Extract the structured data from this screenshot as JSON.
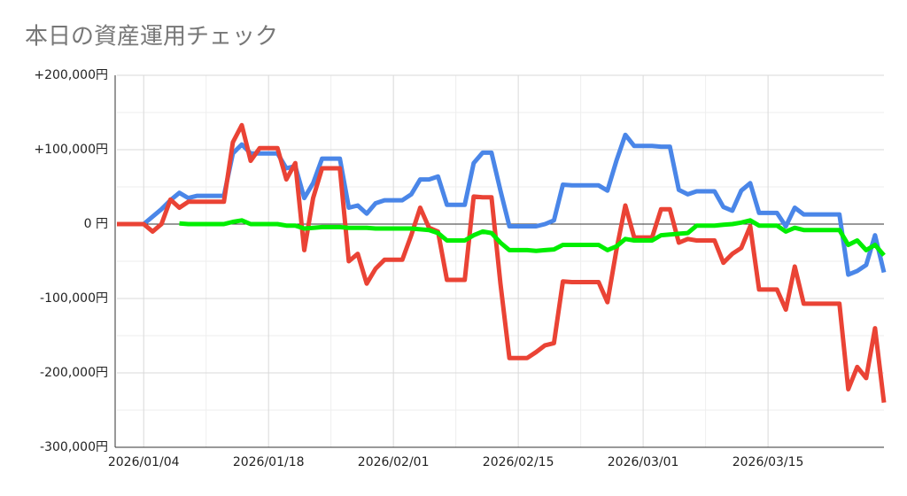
{
  "chart_data": {
    "type": "line",
    "title": "本日の資産運用チェック",
    "categories": [
      "2026/01/01",
      "2026/01/02",
      "2026/01/03",
      "2026/01/04",
      "2026/01/05",
      "2026/01/06",
      "2026/01/07",
      "2026/01/08",
      "2026/01/09",
      "2026/01/10",
      "2026/01/11",
      "2026/01/12",
      "2026/01/13",
      "2026/01/14",
      "2026/01/15",
      "2026/01/16",
      "2026/01/17",
      "2026/01/18",
      "2026/01/19",
      "2026/01/20",
      "2026/01/21",
      "2026/01/22",
      "2026/01/23",
      "2026/01/24",
      "2026/01/25",
      "2026/01/26",
      "2026/01/27",
      "2026/01/28",
      "2026/01/29",
      "2026/01/30",
      "2026/01/31",
      "2026/02/01",
      "2026/02/02",
      "2026/02/03",
      "2026/02/04",
      "2026/02/05",
      "2026/02/06",
      "2026/02/07",
      "2026/02/08",
      "2026/02/09",
      "2026/02/10",
      "2026/02/11",
      "2026/02/12",
      "2026/02/13",
      "2026/02/14",
      "2026/02/15",
      "2026/02/16",
      "2026/02/17",
      "2026/02/18",
      "2026/02/19",
      "2026/02/20",
      "2026/02/21",
      "2026/02/22",
      "2026/02/23",
      "2026/02/24",
      "2026/02/25",
      "2026/02/26",
      "2026/02/27",
      "2026/02/28",
      "2026/03/01",
      "2026/03/02",
      "2026/03/03",
      "2026/03/04",
      "2026/03/05",
      "2026/03/06",
      "2026/03/07",
      "2026/03/08",
      "2026/03/09",
      "2026/03/10",
      "2026/03/11",
      "2026/03/12",
      "2026/03/13",
      "2026/03/14",
      "2026/03/15",
      "2026/03/16",
      "2026/03/17",
      "2026/03/18",
      "2026/03/19",
      "2026/03/20",
      "2026/03/21",
      "2026/03/22",
      "2026/03/23",
      "2026/03/24",
      "2026/03/25",
      "2026/03/26",
      "2026/03/27",
      "2026/03/28"
    ],
    "series": [
      {
        "color": "#4a86e8",
        "values": [
          0,
          0,
          0,
          0,
          10000,
          20000,
          32000,
          42000,
          35000,
          38000,
          38000,
          38000,
          38000,
          95000,
          107000,
          95000,
          95000,
          95000,
          95000,
          75000,
          78000,
          35000,
          55000,
          88000,
          88000,
          88000,
          22000,
          25000,
          14000,
          28000,
          32000,
          32000,
          32000,
          40000,
          60000,
          60000,
          64000,
          26000,
          26000,
          26000,
          82000,
          96000,
          96000,
          45000,
          -3000,
          -3000,
          -3000,
          -3000,
          0,
          5000,
          53000,
          52000,
          52000,
          52000,
          52000,
          45000,
          85000,
          120000,
          105000,
          105000,
          105000,
          104000,
          104000,
          46000,
          40000,
          44000,
          44000,
          44000,
          23000,
          18000,
          45000,
          55000,
          15000,
          15000,
          15000,
          -3000,
          22000,
          13000,
          13000,
          13000,
          13000,
          13000,
          -68000,
          -63000,
          -55000,
          -15000,
          -65000
        ]
      },
      {
        "color": "#ea4335",
        "values": [
          0,
          0,
          0,
          0,
          -10000,
          0,
          33000,
          22000,
          30000,
          30000,
          30000,
          30000,
          30000,
          110000,
          133000,
          85000,
          102000,
          102000,
          102000,
          60000,
          82000,
          -35000,
          35000,
          75000,
          75000,
          75000,
          -50000,
          -40000,
          -80000,
          -60000,
          -48000,
          -48000,
          -48000,
          -15000,
          22000,
          -5000,
          -10000,
          -75000,
          -75000,
          -75000,
          37000,
          36000,
          36000,
          -80000,
          -180000,
          -180000,
          -180000,
          -172000,
          -163000,
          -160000,
          -77000,
          -78000,
          -78000,
          -78000,
          -78000,
          -105000,
          -35000,
          25000,
          -18000,
          -18000,
          -18000,
          20000,
          20000,
          -25000,
          -20000,
          -22000,
          -22000,
          -22000,
          -52000,
          -40000,
          -32000,
          -3000,
          -88000,
          -88000,
          -88000,
          -115000,
          -57000,
          -107000,
          -107000,
          -107000,
          -107000,
          -107000,
          -222000,
          -192000,
          -207000,
          -140000,
          -240000
        ]
      },
      {
        "color": "#00ee00",
        "values": [
          null,
          null,
          null,
          null,
          null,
          null,
          null,
          1000,
          0,
          0,
          0,
          0,
          0,
          3000,
          5000,
          0,
          0,
          0,
          0,
          -2000,
          -2000,
          -6000,
          -5000,
          -4000,
          -4000,
          -4000,
          -5000,
          -5000,
          -5000,
          -6000,
          -6000,
          -6000,
          -6000,
          -6000,
          -7000,
          -8000,
          -12000,
          -22000,
          -22000,
          -22000,
          -15000,
          -10000,
          -12000,
          -25000,
          -35000,
          -35000,
          -35000,
          -36000,
          -35000,
          -34000,
          -28000,
          -28000,
          -28000,
          -28000,
          -28000,
          -35000,
          -30000,
          -20000,
          -22000,
          -22000,
          -22000,
          -15000,
          -14000,
          -13000,
          -12000,
          -2000,
          -2000,
          -2000,
          -1000,
          0,
          2000,
          5000,
          -2000,
          -2000,
          -2000,
          -10000,
          -5000,
          -8000,
          -8000,
          -8000,
          -8000,
          -8000,
          -28000,
          -22000,
          -35000,
          -28000,
          -42000
        ]
      }
    ],
    "xticks": [
      "2026/01/04",
      "2026/01/18",
      "2026/02/01",
      "2026/02/15",
      "2026/03/01",
      "2026/03/15"
    ],
    "ylim": [
      -300000,
      200000
    ],
    "yticks": [
      {
        "value": -300000,
        "label": "-300,000円"
      },
      {
        "value": -200000,
        "label": "-200,000円"
      },
      {
        "value": -100000,
        "label": "-100,000円"
      },
      {
        "value": 0,
        "label": "0 円"
      },
      {
        "value": 100000,
        "label": "+100,000円"
      },
      {
        "value": 200000,
        "label": "+200,000円"
      }
    ],
    "grid": true
  }
}
